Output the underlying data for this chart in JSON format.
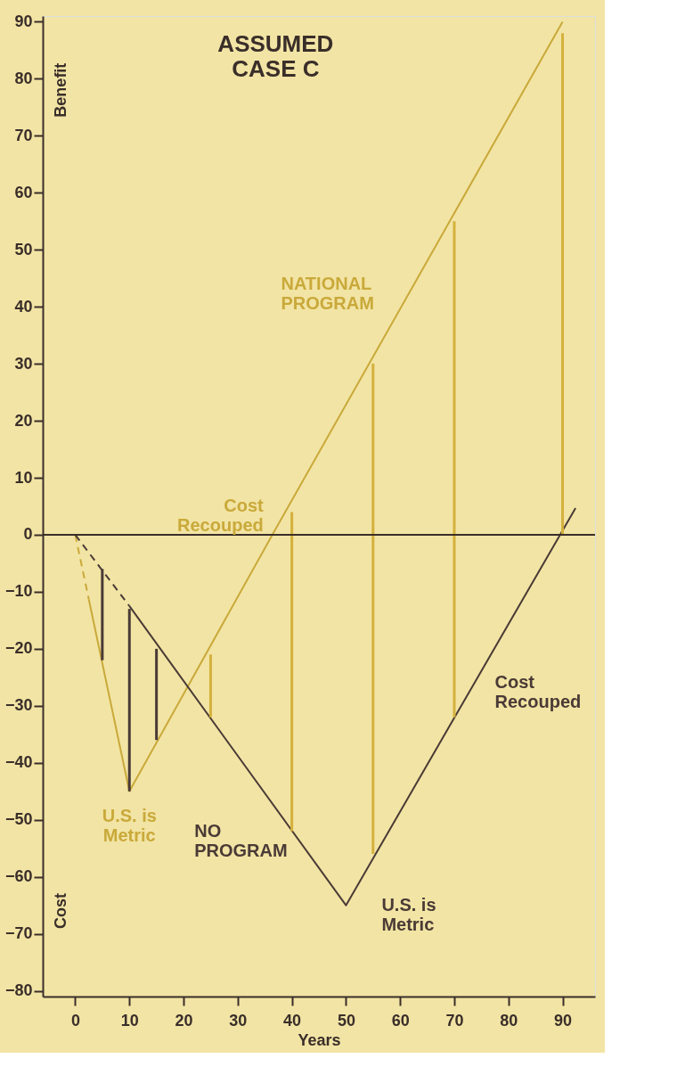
{
  "chart_data": {
    "type": "line",
    "title": "ASSUMED CASE C",
    "xlabel": "Years",
    "xlim": [
      -6,
      96
    ],
    "ylim": [
      -81,
      91
    ],
    "xticks": [
      0,
      10,
      20,
      30,
      40,
      50,
      60,
      70,
      80,
      90
    ],
    "yticks": [
      -80,
      -70,
      -60,
      -50,
      -40,
      -30,
      -20,
      -10,
      0,
      10,
      20,
      30,
      40,
      50,
      60,
      70,
      80,
      90
    ],
    "grid": false,
    "series": [
      {
        "line_style": "dashed",
        "color": "#c9a93a",
        "x": [
          0,
          2.5
        ],
        "values": [
          0,
          -11.3
        ]
      },
      {
        "name": "NATIONAL PROGRAM",
        "line_style": "solid",
        "color": "#c9a93a",
        "x": [
          2.5,
          10,
          36.4,
          90
        ],
        "values": [
          -11.3,
          -45,
          0,
          90
        ]
      },
      {
        "line_style": "dashed",
        "color": "#4a3a36",
        "x": [
          0,
          10
        ],
        "values": [
          0,
          -12.5
        ]
      },
      {
        "name": "NO PROGRAM",
        "line_style": "solid",
        "color": "#4a3a36",
        "x": [
          10,
          50,
          92.4
        ],
        "values": [
          -12.5,
          -65,
          4.7
        ]
      },
      {
        "type": "bar",
        "color": "#4a3a36",
        "x": [
          5,
          10,
          15
        ],
        "base": [
          -6,
          -13,
          -20
        ],
        "values": [
          -16,
          -32,
          -16
        ]
      },
      {
        "type": "bar",
        "color": "#d4b13c",
        "x": [
          25,
          40,
          55,
          70,
          90
        ],
        "base": [
          -32,
          -52,
          -56,
          -32,
          0
        ],
        "values": [
          11,
          56,
          86,
          87,
          88
        ]
      }
    ],
    "ref_lines": [
      {
        "axis": "y",
        "value": 0,
        "color": "#3a2e2a"
      }
    ],
    "annotations": [
      "Benefit",
      "Cost",
      {
        "text": "Cost\nRecouped",
        "x": 36.4,
        "y": 0
      },
      {
        "text": "U.S. is\nMetric",
        "x": 10,
        "y": -45
      },
      {
        "text": "U.S. is\nMetric",
        "x": 50,
        "y": -65
      },
      "Cost\nRecouped"
    ]
  }
}
